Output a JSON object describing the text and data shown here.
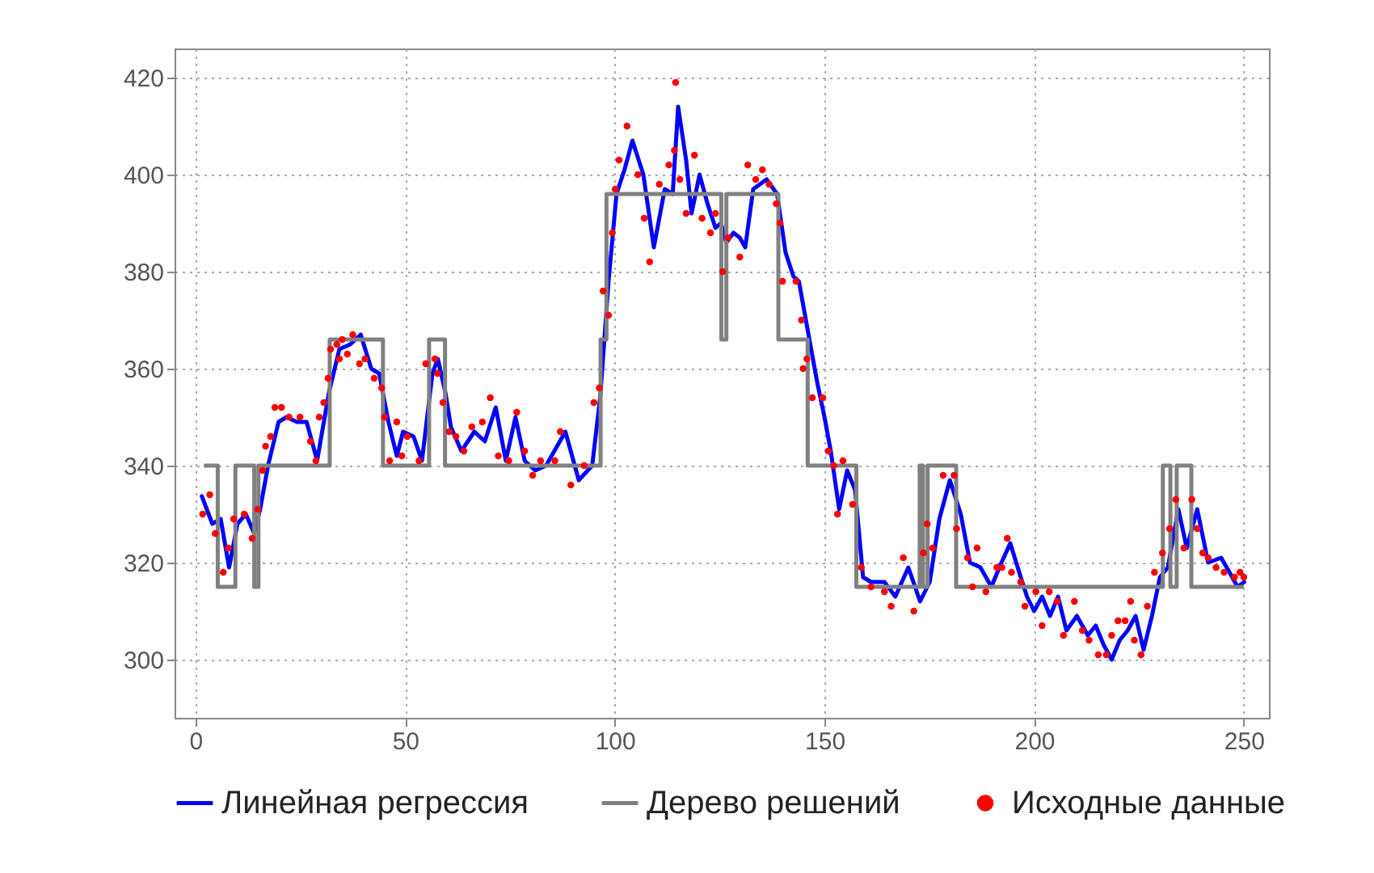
{
  "chart_data": {
    "type": "line",
    "xlim": [
      -5,
      256
    ],
    "ylim": [
      288,
      426
    ],
    "xticks": [
      0,
      50,
      100,
      150,
      200,
      250
    ],
    "yticks": [
      300,
      320,
      340,
      360,
      380,
      400,
      420
    ],
    "grid": true,
    "legend": "bottom",
    "line_style": "solid",
    "series": [
      {
        "name": "Линейная регрессия",
        "type": "line",
        "color": "#0000ff",
        "x": [
          1.5,
          4,
          6,
          8,
          10,
          12,
          14,
          15.4,
          17.3,
          19.8,
          21.7,
          24.2,
          26.5,
          29,
          31.8,
          34.3,
          36.9,
          39.4,
          41.9,
          43.8,
          46,
          48,
          49.5,
          52,
          54,
          56.5,
          57.8,
          59.6,
          60.9,
          63.4,
          66.5,
          69,
          71.6,
          74,
          76.3,
          78.5,
          81,
          83.6,
          88.2,
          91.4,
          94.6,
          96.5,
          98.5,
          100.4,
          102.3,
          104.2,
          106.8,
          109.3,
          111.9,
          113.8,
          115.1,
          117,
          118.3,
          120.2,
          122.1,
          124,
          125.3,
          126.6,
          128.3,
          129.8,
          131.1,
          133,
          136.2,
          138.7,
          140.7,
          142.6,
          143.9,
          146.4,
          148.3,
          150,
          151.5,
          153.5,
          155.4,
          157.3,
          159.2,
          161.1,
          164.3,
          166.9,
          170,
          172.8,
          175.1,
          177.4,
          179.9,
          182.5,
          184.7,
          187.2,
          189.8,
          191.7,
          194.3,
          196.8,
          198.3,
          200,
          201.9,
          203.8,
          205.7,
          207.7,
          210.2,
          212.8,
          214.7,
          216.6,
          218.5,
          220.4,
          222.3,
          224.2,
          226.1,
          228.1,
          230,
          231.9,
          234.4,
          236.4,
          238.9,
          241.5,
          244.6,
          246.6,
          248.5,
          250.1
        ],
        "values": [
          333.7,
          328,
          329,
          319,
          328,
          330,
          326,
          331,
          340,
          349,
          350,
          349,
          349,
          341,
          355,
          364,
          365,
          367,
          360,
          359,
          349,
          342,
          347,
          346,
          341,
          359,
          362,
          355,
          348,
          343,
          347,
          345,
          352,
          341,
          350,
          341,
          339,
          340,
          347,
          337,
          340,
          354,
          378,
          396,
          401,
          407,
          400,
          385,
          397,
          396,
          414,
          403,
          392,
          400,
          394,
          389,
          390,
          386,
          388,
          387,
          385,
          397,
          399,
          396,
          384,
          379,
          378,
          366,
          357,
          350,
          343,
          331,
          339,
          335,
          317,
          316,
          316,
          313,
          319,
          312,
          316,
          329,
          337,
          330,
          320,
          319,
          315,
          319,
          324,
          317,
          313,
          310,
          313,
          309,
          313,
          306,
          309,
          305,
          307,
          303,
          300,
          304,
          306,
          309,
          302,
          309,
          317,
          319,
          331,
          323,
          331,
          320,
          321,
          318,
          315,
          316
        ]
      },
      {
        "name": "Дерево решений",
        "type": "step",
        "color": "#808080",
        "x": [
          2,
          5.3,
          9.5,
          14,
          15,
          32,
          44.7,
          55.7,
          59.5,
          96.6,
          98,
          125.4,
          126.6,
          139,
          146,
          157.6,
          172.7,
          173.5,
          174.6,
          181.4,
          230.7,
          232.5,
          234,
          237.5,
          250
        ],
        "values": [
          340,
          315,
          340,
          315,
          340,
          366,
          340,
          366,
          340,
          366,
          396,
          366,
          396,
          366,
          340,
          315,
          340,
          315,
          340,
          315,
          340,
          315,
          340,
          315,
          315
        ]
      },
      {
        "name": "Исходные данные",
        "type": "scatter",
        "color": "#ff0000",
        "x": [
          1.7,
          3.4,
          4.7,
          6.6,
          7.8,
          9.1,
          11.6,
          13.5,
          14.8,
          16,
          16.7,
          17.9,
          18.9,
          20.5,
          22.3,
          24.9,
          27.4,
          28.7,
          29.5,
          30.6,
          31.6,
          32.2,
          33.7,
          35,
          34.3,
          36.2,
          37.5,
          39.1,
          40.4,
          42.6,
          44.4,
          45.1,
          46.3,
          48,
          49.2,
          50.5,
          53.3,
          54.9,
          57.1,
          57.7,
          59,
          60.5,
          62.1,
          64,
          65.9,
          68.4,
          70.3,
          72.2,
          74.7,
          76.6,
          78.5,
          80.4,
          82.3,
          85.7,
          87,
          89.5,
          92.7,
          95,
          96.3,
          97.2,
          98.5,
          99.4,
          100.1,
          101,
          102.9,
          105.5,
          107,
          108.3,
          110.6,
          112.9,
          114.2,
          114.5,
          115.5,
          117,
          119,
          120.8,
          122.8,
          124,
          125.7,
          127,
          129.8,
          131.7,
          133.6,
          135.2,
          136.8,
          138.5,
          139.4,
          140,
          143.2,
          144.5,
          145.8,
          144.9,
          147.1,
          149.6,
          150.9,
          152.2,
          153.1,
          154.4,
          156.7,
          158.8,
          161.1,
          164.3,
          165.9,
          168.8,
          171.3,
          173.6,
          174.5,
          175.8,
          178.3,
          180.9,
          181.5,
          184.1,
          185.3,
          186.4,
          188.5,
          191.1,
          192.3,
          193.6,
          194.6,
          196.8,
          197.8,
          200.4,
          201.9,
          203.6,
          205.5,
          207,
          209.6,
          211.5,
          213.1,
          215.3,
          217.2,
          218.5,
          220,
          221.7,
          223,
          223.9,
          225.5,
          227,
          228.7,
          230.6,
          232.3,
          233.8,
          235.7,
          237.6,
          238.9,
          240.2,
          241.5,
          243.4,
          245.3,
          247.8,
          249.1,
          250
        ],
        "values": [
          330,
          334,
          326,
          318,
          323,
          329,
          330,
          325,
          331,
          339,
          344,
          346,
          352,
          352,
          350,
          350,
          345,
          341,
          350,
          353,
          358,
          364,
          365,
          366,
          362,
          363,
          367,
          361,
          362,
          358,
          356,
          350,
          341,
          349,
          342,
          346,
          341,
          361,
          362,
          359,
          353,
          347,
          346,
          343,
          348,
          349,
          354,
          342,
          341,
          351,
          343,
          338,
          341,
          341,
          347,
          336,
          340,
          353,
          356,
          376,
          371,
          388,
          397,
          403,
          410,
          400,
          391,
          382,
          398,
          402,
          405,
          419,
          399,
          392,
          404,
          391,
          388,
          392,
          380,
          387,
          383,
          402,
          399,
          401,
          398,
          394,
          390,
          378,
          378,
          370,
          362,
          360,
          354,
          354,
          343,
          340,
          330,
          341,
          332,
          319,
          315,
          314,
          311,
          321,
          310,
          322,
          328,
          323,
          338,
          338,
          327,
          321,
          315,
          323,
          314,
          319,
          319,
          325,
          318,
          316,
          311,
          314,
          307,
          314,
          312,
          305,
          312,
          306,
          304,
          301,
          301,
          305,
          308,
          308,
          312,
          304,
          301,
          311,
          318,
          322,
          327,
          333,
          323,
          333,
          327,
          322,
          321,
          319,
          318,
          317,
          318,
          317
        ]
      }
    ]
  }
}
